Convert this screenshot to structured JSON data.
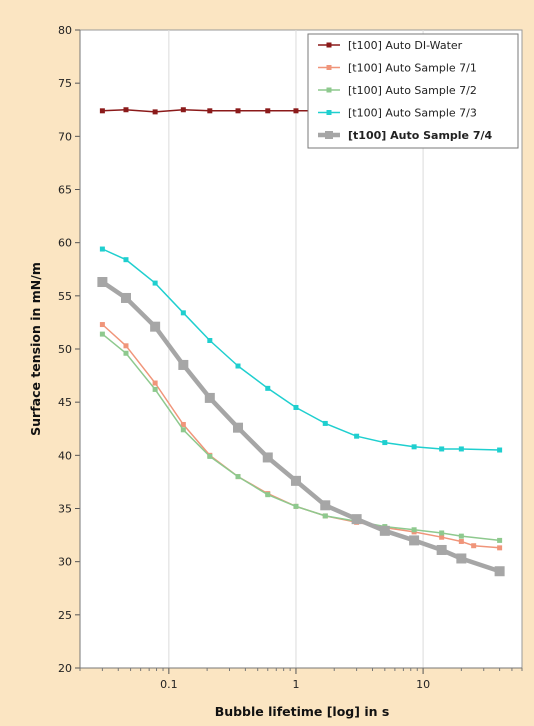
{
  "chart_data": {
    "type": "line",
    "title": "",
    "xlabel": "Bubble lifetime [log] in s",
    "ylabel": "Surface tension in mN/m",
    "xscale": "log",
    "xlim": [
      0.02,
      60
    ],
    "ylim": [
      20,
      80
    ],
    "y_ticks": [
      20,
      25,
      30,
      35,
      40,
      45,
      50,
      55,
      60,
      65,
      70,
      75,
      80
    ],
    "x_ticks": [
      0.1,
      1,
      10
    ],
    "x_tick_labels": [
      "0.1",
      "1",
      "10"
    ],
    "grid": "vertical at log decades",
    "legend_position": "top-right",
    "series": [
      {
        "name": "[t100] Auto DI-Water",
        "color": "#8b1a1a",
        "bold": false,
        "x": [
          0.03,
          0.046,
          0.078,
          0.13,
          0.21,
          0.35,
          0.6,
          1.0,
          1.7
        ],
        "y": [
          72.4,
          72.5,
          72.3,
          72.5,
          72.4,
          72.4,
          72.4,
          72.4,
          72.4
        ]
      },
      {
        "name": "[t100] Auto Sample 7/1",
        "color": "#f0957a",
        "bold": false,
        "x": [
          0.03,
          0.046,
          0.078,
          0.13,
          0.21,
          0.35,
          0.6,
          1.0,
          1.7,
          3.0,
          5.0,
          8.5,
          14,
          20,
          25,
          40
        ],
        "y": [
          52.3,
          50.3,
          46.8,
          42.9,
          40.0,
          38.0,
          36.4,
          35.2,
          34.3,
          33.7,
          33.2,
          32.8,
          32.3,
          31.9,
          31.5,
          31.3
        ]
      },
      {
        "name": "[t100] Auto Sample 7/2",
        "color": "#8ec98e",
        "bold": false,
        "x": [
          0.03,
          0.046,
          0.078,
          0.13,
          0.21,
          0.35,
          0.6,
          1.0,
          1.7,
          3.0,
          5.0,
          8.5,
          14,
          20,
          40
        ],
        "y": [
          51.4,
          49.6,
          46.2,
          42.4,
          39.9,
          38.0,
          36.3,
          35.2,
          34.3,
          33.8,
          33.3,
          33.0,
          32.7,
          32.4,
          32.0
        ]
      },
      {
        "name": "[t100] Auto Sample 7/3",
        "color": "#1fcfcf",
        "bold": false,
        "x": [
          0.03,
          0.046,
          0.078,
          0.13,
          0.21,
          0.35,
          0.6,
          1.0,
          1.7,
          3.0,
          5.0,
          8.5,
          14,
          20,
          40
        ],
        "y": [
          59.4,
          58.4,
          56.2,
          53.4,
          50.8,
          48.4,
          46.3,
          44.5,
          43.0,
          41.8,
          41.2,
          40.8,
          40.6,
          40.6,
          40.5
        ]
      },
      {
        "name": "[t100] Auto Sample 7/4",
        "color": "#a6a6a6",
        "bold": true,
        "x": [
          0.03,
          0.046,
          0.078,
          0.13,
          0.21,
          0.35,
          0.6,
          1.0,
          1.7,
          3.0,
          5.0,
          8.5,
          14,
          20,
          40
        ],
        "y": [
          56.3,
          54.8,
          52.1,
          48.5,
          45.4,
          42.6,
          39.8,
          37.6,
          35.3,
          34.0,
          32.9,
          32.0,
          31.1,
          30.3,
          29.1
        ]
      }
    ]
  }
}
